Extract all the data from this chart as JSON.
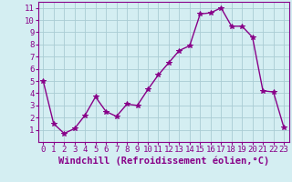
{
  "x": [
    0,
    1,
    2,
    3,
    4,
    5,
    6,
    7,
    8,
    9,
    10,
    11,
    12,
    13,
    14,
    15,
    16,
    17,
    18,
    19,
    20,
    21,
    22,
    23
  ],
  "y": [
    5.0,
    1.5,
    0.7,
    1.1,
    2.2,
    3.7,
    2.5,
    2.1,
    3.1,
    3.0,
    4.3,
    5.5,
    6.5,
    7.5,
    7.9,
    10.5,
    10.6,
    11.0,
    9.5,
    9.5,
    8.6,
    4.2,
    4.1,
    1.2
  ],
  "line_color": "#880088",
  "marker": "*",
  "marker_size": 4,
  "bg_color": "#d4eef2",
  "grid_color": "#aaccd4",
  "xlabel": "Windchill (Refroidissement éolien,°C)",
  "xlim": [
    -0.5,
    23.5
  ],
  "ylim": [
    0.0,
    11.5
  ],
  "yticks": [
    1,
    2,
    3,
    4,
    5,
    6,
    7,
    8,
    9,
    10,
    11
  ],
  "xticks": [
    0,
    1,
    2,
    3,
    4,
    5,
    6,
    7,
    8,
    9,
    10,
    11,
    12,
    13,
    14,
    15,
    16,
    17,
    18,
    19,
    20,
    21,
    22,
    23
  ],
  "axis_color": "#880088",
  "tick_color": "#880088",
  "font_size": 6.5,
  "label_font_size": 7.5
}
